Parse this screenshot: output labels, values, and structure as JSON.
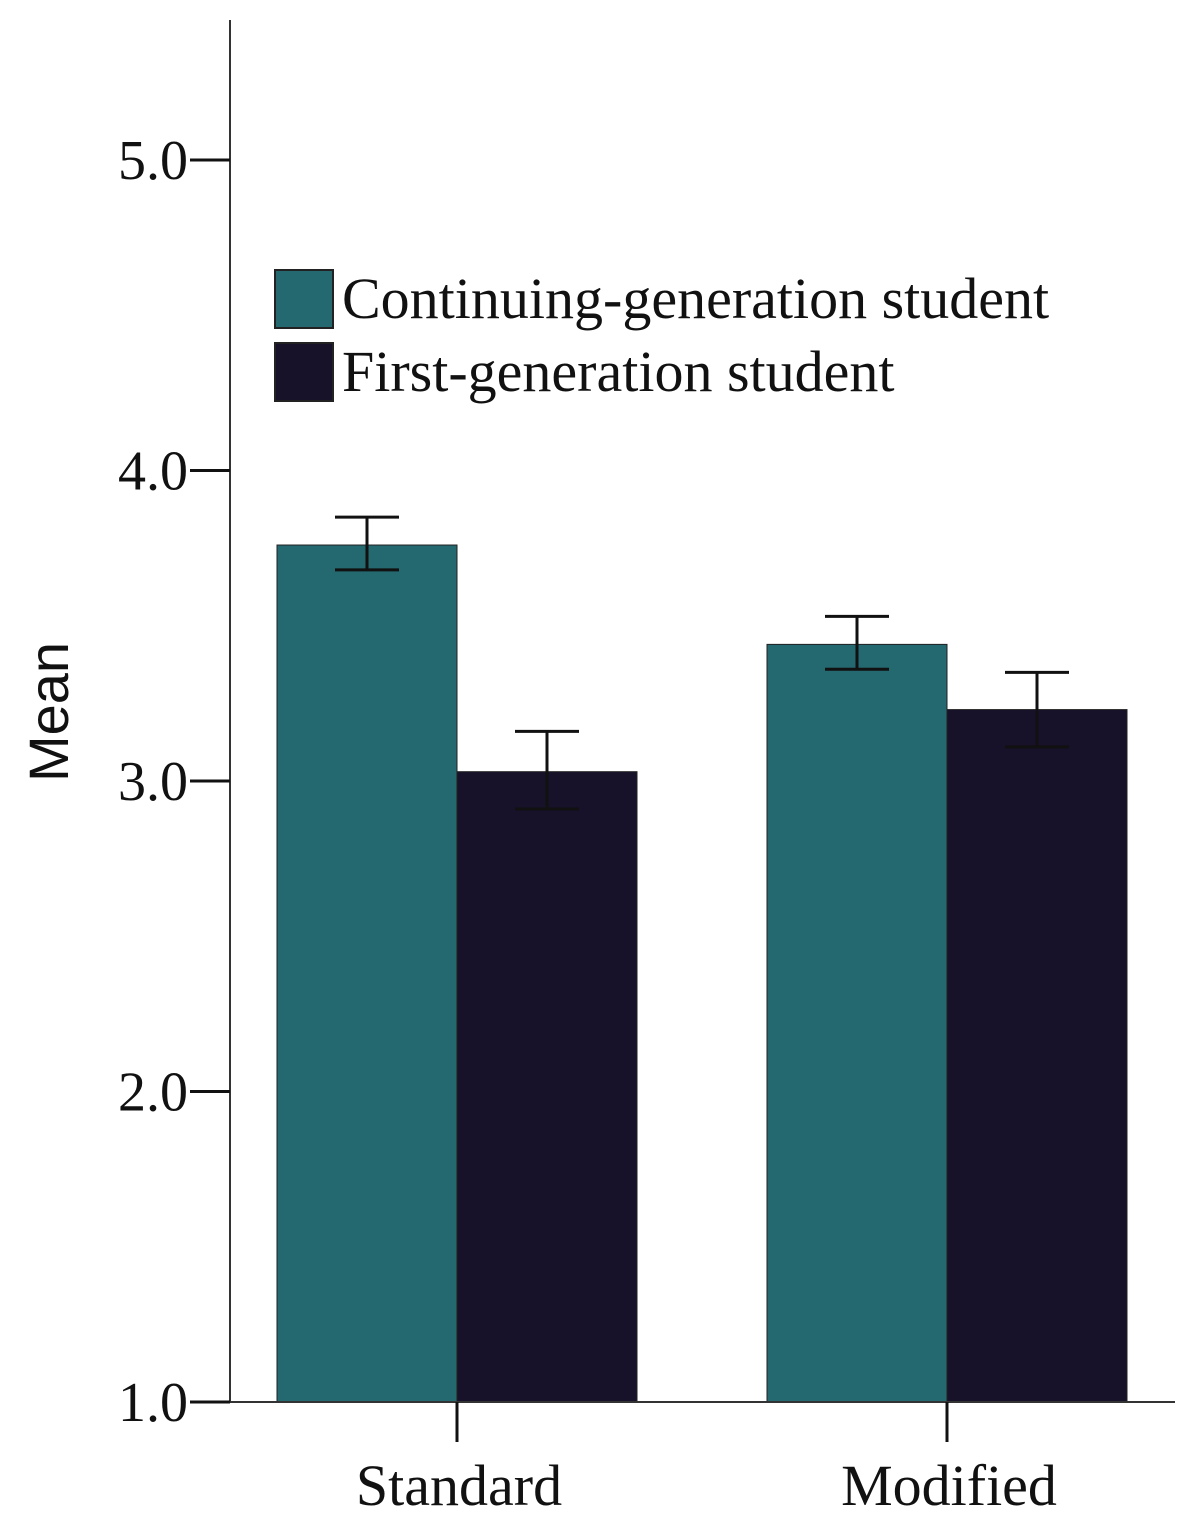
{
  "chart_data": {
    "type": "bar",
    "title": "",
    "xlabel": "",
    "ylabel": "Mean",
    "ylim": [
      1.0,
      5.5
    ],
    "yticks": [
      1.0,
      2.0,
      3.0,
      4.0,
      5.0
    ],
    "ytick_labels": [
      "1.0",
      "2.0",
      "3.0",
      "4.0",
      "5.0"
    ],
    "categories": [
      "Standard",
      "Modified"
    ],
    "grid": false,
    "legend_position": "upper-left",
    "error_bars": true,
    "series": [
      {
        "name": "Continuing-generation student",
        "color": "#246870",
        "values": [
          3.76,
          3.44
        ],
        "err_low": [
          3.68,
          3.36
        ],
        "err_high": [
          3.85,
          3.53
        ]
      },
      {
        "name": "First-generation student",
        "color": "#18112a",
        "values": [
          3.03,
          3.23
        ],
        "err_low": [
          2.91,
          3.11
        ],
        "err_high": [
          3.16,
          3.35
        ]
      }
    ]
  }
}
